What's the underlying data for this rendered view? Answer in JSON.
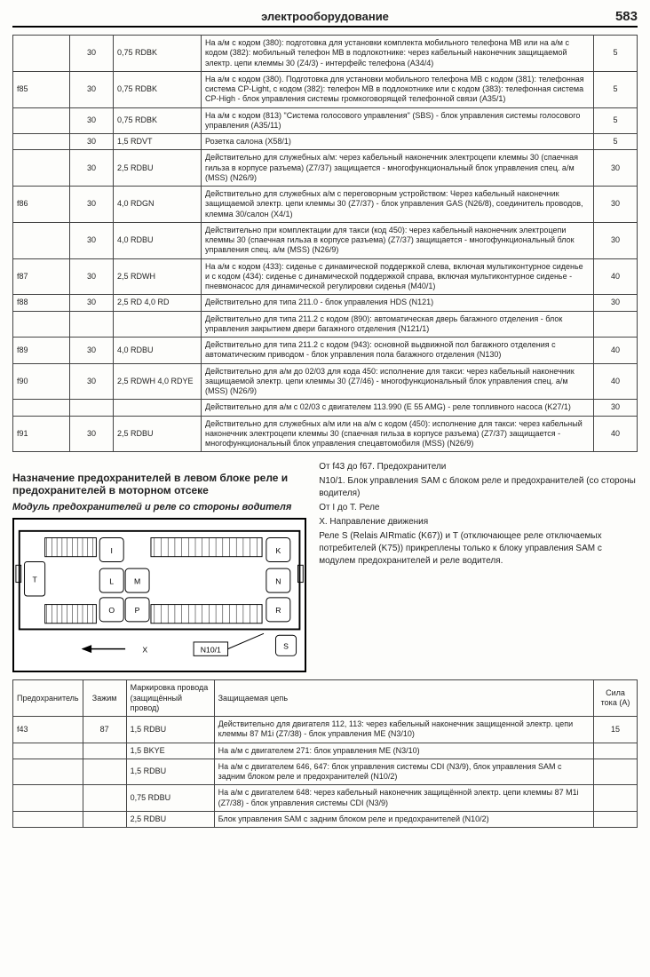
{
  "header": {
    "title": "электрооборудование",
    "page": "583"
  },
  "table1": {
    "rows": [
      {
        "fuse": "",
        "term": "30",
        "wire": "0,75 RDBK",
        "desc": "На а/м с кодом (380): подготовка для установки комплекта мобильного телефона MB или на а/м с кодом (382): мобильный телефон MB в подлокотнике: через кабельный наконечник защищаемой электр. цепи клеммы 30 (Z4/3) - интерфейс телефона (A34/4)",
        "amp": "5"
      },
      {
        "fuse": "f85",
        "term": "30",
        "wire": "0,75 RDBK",
        "desc": "На а/м с кодом (380). Подготовка для установки мобильного телефона MB с кодом (381): телефонная система CP-Light, с кодом (382): телефон MB в подлокотнике или с кодом (383): телефонная система CP-High - блок управления системы громкоговорящей телефонной связи (A35/1)",
        "amp": "5"
      },
      {
        "fuse": "",
        "term": "30",
        "wire": "0,75 RDBK",
        "desc": "На а/м с кодом (813) \"Система голосового управления\" (SBS) - блок управления системы голосового управления (A35/11)",
        "amp": "5"
      },
      {
        "fuse": "",
        "term": "30",
        "wire": "1,5 RDVT",
        "desc": "Розетка салона (X58/1)",
        "amp": "5"
      },
      {
        "fuse": "",
        "term": "30",
        "wire": "2,5 RDBU",
        "desc": "Действительно для служебных а/м: через кабельный наконечник электроцепи клеммы 30 (спаечная гильза в корпусе разъема) (Z7/37) защищается - многофункциональный блок управления спец. а/м (MSS) (N26/9)",
        "amp": "30"
      },
      {
        "fuse": "f86",
        "term": "30",
        "wire": "4,0 RDGN",
        "desc": "Действительно для служебных а/м с переговорным устройством: Через кабельный наконечник защищаемой электр. цепи клеммы 30 (Z7/37) - блок управления GAS (N26/8), соединитель проводов, клемма 30/салон (X4/1)",
        "amp": "30"
      },
      {
        "fuse": "",
        "term": "30",
        "wire": "4,0 RDBU",
        "desc": "Действительно при комплектации для такси (код 450): через кабельный наконечник электроцепи клеммы 30 (спаечная гильза в корпусе разъема) (Z7/37) защищается - многофункциональный блок управления спец. а/м (MSS) (N26/9)",
        "amp": "30"
      },
      {
        "fuse": "f87",
        "term": "30",
        "wire": "2,5 RDWH",
        "desc": "На а/м с кодом (433): сиденье с динамической поддержкой слева, включая мультиконтурное сиденье и с кодом (434): сиденье с динамической поддержкой справа, включая мультиконтурное сиденье - пневмонасос для динамической регулировки сиденья (M40/1)",
        "amp": "40"
      },
      {
        "fuse": "f88",
        "term": "30",
        "wire": "2,5 RD 4,0 RD",
        "desc": "Действительно для типа 211.0 - блок управления HDS (N121)",
        "amp": "30"
      },
      {
        "fuse": "",
        "term": "",
        "wire": "",
        "desc": "Действительно для типа 211.2 с кодом (890): автоматическая дверь багажного отделения - блок управления закрытием двери багажного отделения (N121/1)",
        "amp": ""
      },
      {
        "fuse": "f89",
        "term": "30",
        "wire": "4,0 RDBU",
        "desc": "Действительно для типа 211.2 с кодом (943): основной выдвижной пол багажного отделения с автоматическим приводом - блок управления пола багажного отделения (N130)",
        "amp": "40"
      },
      {
        "fuse": "f90",
        "term": "30",
        "wire": "2,5 RDWH 4,0 RDYE",
        "desc": "Действительно для а/м до 02/03 для кода 450: исполнение для такси: через кабельный наконечник защищаемой электр. цепи клеммы 30 (Z7/46) - многофункциональный блок управления спец. а/м (MSS) (N26/9)",
        "amp": "40"
      },
      {
        "fuse": "",
        "term": "",
        "wire": "",
        "desc": "Действительно для а/м с 02/03 с двигателем 113.990 (E 55 AMG) - реле топливного насоса (K27/1)",
        "amp": "30"
      },
      {
        "fuse": "f91",
        "term": "30",
        "wire": "2,5 RDBU",
        "desc": "Действительно для служебных а/м или на а/м с кодом (450): исполнение для такси: через кабельный наконечник электроцепи клеммы 30 (спаечная гильза в корпусе разъема) (Z7/37) защищается - многофункциональный блок управления спецавтомобиля (MSS) (N26/9)",
        "amp": "40"
      }
    ]
  },
  "section": {
    "heading": "Назначение предохранителей в левом блоке реле и предохранителей в моторном отсеке",
    "sub": "Модуль предохранителей и реле со стороны водителя",
    "right_lines": [
      "От f43 до f67. Предохранители",
      "N10/1. Блок управления SAM с блоком реле и предохранителей (со стороны водителя)",
      "От I до T. Реле",
      "X. Направление движения",
      "Реле S (Relais AIRmatic (K67)) и T (отключающее реле отключаемых потребителей (K75)) прикреплены только к блоку управления SAM с модулем предохранителей и реле водителя."
    ]
  },
  "diagram": {
    "relays": [
      "I",
      "K",
      "L",
      "M",
      "N",
      "O",
      "P",
      "R",
      "S",
      "T"
    ],
    "label_arrow": "X",
    "label_box": "N10/1"
  },
  "table2": {
    "headers": [
      "Предохранитель",
      "Зажим",
      "Маркировка провода (защищённый провод)",
      "Защищаемая цепь",
      "Сила тока (A)"
    ],
    "rows": [
      {
        "fuse": "f43",
        "term": "87",
        "wire": "1,5 RDBU",
        "desc": "Действительно для двигателя 112, 113: через кабельный наконечник защищенной электр. цепи клеммы 87 M1i (Z7/38) - блок управления ME (N3/10)",
        "amp": "15"
      },
      {
        "fuse": "",
        "term": "",
        "wire": "1,5 BKYE",
        "desc": "На а/м с двигателем 271: блок управления ME (N3/10)",
        "amp": ""
      },
      {
        "fuse": "",
        "term": "",
        "wire": "1,5 RDBU",
        "desc": "На а/м с двигателем 646, 647: блок управления системы CDI (N3/9), блок управления SAM с задним блоком реле и предохранителей (N10/2)",
        "amp": ""
      },
      {
        "fuse": "",
        "term": "",
        "wire": "0,75 RDBU",
        "desc": "На а/м с двигателем 648: через кабельный наконечник защищённой электр. цепи клеммы 87 M1i (Z7/38) - блок управления системы CDI (N3/9)",
        "amp": ""
      },
      {
        "fuse": "",
        "term": "",
        "wire": "2,5 RDBU",
        "desc": "Блок управления SAM с задним блоком реле и предохранителей (N10/2)",
        "amp": ""
      }
    ]
  }
}
